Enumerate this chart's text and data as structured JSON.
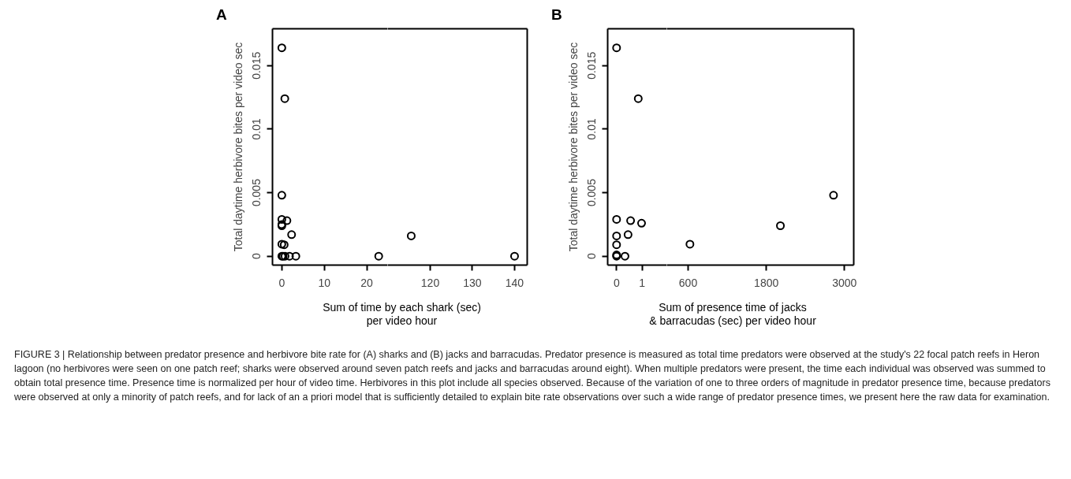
{
  "chart_data": [
    {
      "type": "scatter",
      "title": "A",
      "ylabel": "Total daytime herbivore bites per video sec",
      "xlabel": "Sum of time by each shark (sec)\nper video hour",
      "xlim": [
        -2.2,
        24.9
      ],
      "xticks": [
        0,
        10,
        20
      ],
      "ylim": [
        -0.0007,
        0.0179
      ],
      "yticks": [
        0,
        0.005,
        0.01,
        0.015
      ],
      "marker": "circle",
      "color": "#000000",
      "x": [
        0,
        0.7,
        0,
        0,
        0,
        0,
        1.2,
        2.3,
        0,
        0.55,
        0,
        0.3,
        0.75,
        1.8,
        3.3,
        22.8
      ],
      "values": [
        0.0164,
        0.0124,
        0.0048,
        0.0029,
        0.0025,
        0.0024,
        0.0028,
        0.0017,
        0.00095,
        0.0009,
        0,
        0,
        0,
        0,
        0,
        0
      ],
      "annotations": [
        "FIGURE 3 | Relationship between predator presence and herbivore bite rate for (A) sharks and (B) jacks and barracudas. Predator presence is measured as total time predators were observed at the study's 22 focal patch reefs in Heron lagoon (no herbivores were seen on one patch reef; sharks were observed around seven patch reefs and jacks and barracudas around eight). When multiple predators were present, the time each individual was observed was summed to obtain total presence time. Presence time is normalized per hour of video time. Herbivores in this plot include all species observed. Because of the variation of one to three orders of magnitude in predator presence time, because predators were observed at only a minority of patch reefs, and for lack of an a priori model that is sufficiently detailed to explain bite rate observations over such a wide range of predator presence times, we present here the raw data for examination."
      ]
    },
    {
      "type": "scatter",
      "tick_labels": "x",
      "xlim": [
        109.9,
        143
      ],
      "xticks": [
        120,
        130,
        140
      ],
      "ylim": [
        -0.0007,
        0.0179
      ],
      "marker": "circle",
      "color": "#000000",
      "x": [
        115.5,
        140
      ],
      "values": [
        0.0016,
        0
      ]
    },
    {
      "type": "scatter",
      "title": "B",
      "ylabel": "Total daytime herbivore bites per video sec",
      "xlabel": "Sum of presence time of jacks\n& barracudas (sec) per video hour",
      "xlim": [
        -0.35,
        1.97
      ],
      "xticks": [
        0,
        1
      ],
      "ylim": [
        -0.0007,
        0.0179
      ],
      "yticks": [
        0,
        0.005,
        0.01,
        0.015
      ],
      "marker": "circle",
      "color": "#000000",
      "x": [
        0,
        0.85,
        0,
        0.55,
        0.98,
        0,
        0.45,
        0,
        0,
        0,
        0.33
      ],
      "values": [
        0.0164,
        0.0124,
        0.0029,
        0.0028,
        0.0026,
        0.0016,
        0.0017,
        0.0009,
        0,
        0.0001,
        0
      ]
    },
    {
      "type": "scatter",
      "tick_labels": "x",
      "xlim": [
        273,
        3141
      ],
      "xticks": [
        600,
        1800,
        3000
      ],
      "ylim": [
        -0.0007,
        0.0179
      ],
      "marker": "circle",
      "color": "#000000",
      "x": [
        628,
        2016,
        2831
      ],
      "values": [
        0.00095,
        0.0024,
        0.0048
      ]
    }
  ]
}
